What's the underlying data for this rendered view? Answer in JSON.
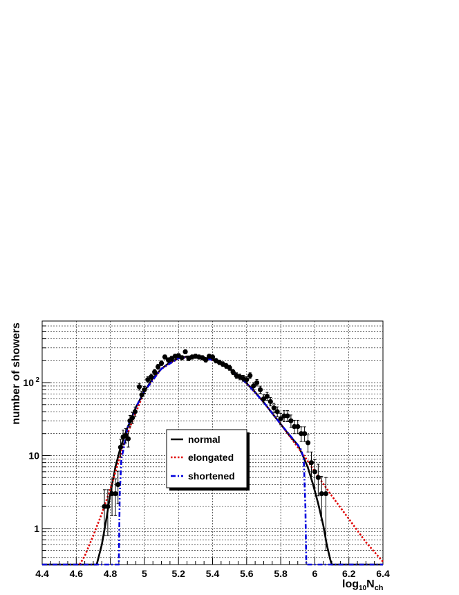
{
  "chart_data": {
    "type": "scatter",
    "xlabel": "log10 Nch",
    "xlabel_parts": {
      "base": "log",
      "base_sub": "10",
      "var": "N",
      "var_sub": "ch"
    },
    "ylabel": "number of showers",
    "xlim": [
      4.4,
      6.4
    ],
    "ylim": [
      0.32,
      700
    ],
    "yscale": "log",
    "grid": true,
    "x_tick_labels": [
      "4.4",
      "4.6",
      "4.8",
      "5",
      "5.2",
      "5.4",
      "5.6",
      "5.8",
      "6",
      "6.2",
      "6.4"
    ],
    "y_tick_labels": [
      {
        "value": 1,
        "label": "1"
      },
      {
        "value": 10,
        "label": "10"
      },
      {
        "value": 100,
        "label": "10",
        "sup": "2"
      }
    ],
    "legend": {
      "placement": "center",
      "entries": [
        {
          "name": "normal",
          "color": "#000000",
          "style": "solid"
        },
        {
          "name": "elongated",
          "color": "#e00000",
          "style": "dotted"
        },
        {
          "name": "shortened",
          "color": "#0000dd",
          "style": "dashdot"
        }
      ]
    },
    "series": [
      {
        "name": "data",
        "kind": "points",
        "color": "#000000",
        "x": [
          4.765,
          4.785,
          4.81,
          4.83,
          4.845,
          4.86,
          4.875,
          4.89,
          4.905,
          4.915,
          4.93,
          4.945,
          4.97,
          4.985,
          5.0,
          5.02,
          5.04,
          5.06,
          5.08,
          5.1,
          5.12,
          5.14,
          5.16,
          5.18,
          5.2,
          5.22,
          5.24,
          5.26,
          5.28,
          5.3,
          5.32,
          5.34,
          5.36,
          5.38,
          5.4,
          5.42,
          5.44,
          5.46,
          5.48,
          5.5,
          5.52,
          5.54,
          5.56,
          5.58,
          5.6,
          5.62,
          5.64,
          5.66,
          5.68,
          5.7,
          5.72,
          5.74,
          5.76,
          5.78,
          5.8,
          5.82,
          5.84,
          5.86,
          5.88,
          5.9,
          5.92,
          5.94,
          5.96,
          5.98,
          6.0,
          6.02,
          6.04,
          6.065
        ],
        "y": [
          2,
          2,
          3,
          3,
          4,
          13,
          18,
          19,
          17,
          30,
          33,
          40,
          88,
          68,
          80,
          110,
          120,
          140,
          165,
          185,
          225,
          205,
          215,
          230,
          235,
          220,
          265,
          215,
          225,
          230,
          225,
          220,
          205,
          230,
          225,
          200,
          190,
          180,
          170,
          160,
          140,
          125,
          120,
          115,
          110,
          125,
          90,
          100,
          80,
          60,
          65,
          55,
          45,
          40,
          32,
          35,
          35,
          30,
          25,
          25,
          20,
          20,
          15,
          8,
          6,
          5,
          3,
          3
        ],
        "err_lo": [
          1.2,
          1.2,
          1.5,
          1.5,
          1.8,
          3.4,
          4.0,
          4.1,
          3.9,
          5.2,
          5.5,
          6.0,
          9.0,
          8.0,
          8.5,
          10.0,
          10.5,
          11.5,
          12.5,
          13.5,
          15.0,
          14.0,
          14.5,
          15.0,
          15.0,
          14.5,
          16.0,
          14.5,
          15.0,
          15.0,
          15.0,
          14.5,
          14.0,
          15.0,
          15.0,
          14.0,
          13.5,
          13.0,
          13.0,
          12.5,
          11.5,
          11.0,
          10.5,
          10.5,
          10.5,
          11.0,
          9.5,
          10.0,
          9.0,
          7.5,
          8.0,
          7.0,
          6.5,
          6.0,
          5.5,
          5.8,
          5.8,
          5.5,
          5.0,
          5.0,
          4.4,
          4.4,
          3.8,
          2.8,
          2.4,
          2.2,
          1.7,
          2.5
        ],
        "err_hi": [
          1.4,
          1.4,
          1.8,
          1.8,
          2.1,
          3.7,
          4.3,
          4.4,
          4.2,
          5.5,
          5.8,
          6.3,
          9.4,
          8.3,
          8.9,
          10.5,
          11.0,
          12.0,
          13.0,
          14.0,
          15.5,
          14.5,
          15.0,
          15.5,
          15.5,
          15.0,
          16.5,
          15.0,
          15.5,
          15.5,
          15.5,
          15.0,
          14.5,
          15.5,
          15.5,
          14.5,
          14.0,
          13.5,
          13.5,
          13.0,
          12.0,
          11.5,
          11.0,
          11.0,
          11.0,
          11.5,
          10.0,
          10.5,
          9.5,
          8.0,
          8.5,
          7.5,
          7.0,
          6.5,
          6.0,
          6.3,
          6.3,
          6.0,
          5.5,
          5.5,
          4.8,
          4.8,
          4.2,
          3.2,
          2.8,
          2.6,
          2.2,
          2.0
        ]
      },
      {
        "name": "normal",
        "kind": "line",
        "color": "#000000",
        "style": "solid",
        "x": [
          4.4,
          4.72,
          4.75,
          4.78,
          4.8,
          4.83,
          4.86,
          4.9,
          4.95,
          5.0,
          5.05,
          5.1,
          5.15,
          5.2,
          5.25,
          5.3,
          5.35,
          5.4,
          5.45,
          5.5,
          5.55,
          5.6,
          5.65,
          5.7,
          5.75,
          5.8,
          5.85,
          5.9,
          5.93,
          5.96,
          5.99,
          6.02,
          6.05,
          6.07,
          6.09,
          6.1,
          6.4
        ],
        "y": [
          0.32,
          0.32,
          0.6,
          1.5,
          3.0,
          7.0,
          13.0,
          24.0,
          46.0,
          76.0,
          115.0,
          155.0,
          190.0,
          215.0,
          228.0,
          230.0,
          222.0,
          205.0,
          182.0,
          155.0,
          126.0,
          98.0,
          74.0,
          54.0,
          38.0,
          27.0,
          19.0,
          14.0,
          10.0,
          6.8,
          4.0,
          2.2,
          1.1,
          0.6,
          0.38,
          0.32,
          0.32
        ]
      },
      {
        "name": "elongated",
        "kind": "line",
        "color": "#e00000",
        "style": "dotted",
        "x": [
          4.62,
          4.65,
          4.7,
          4.75,
          4.8,
          4.85,
          4.9,
          5.0,
          5.1,
          5.2,
          5.3,
          5.4,
          5.5,
          5.6,
          5.7,
          5.8,
          5.9,
          5.95,
          6.0,
          6.1,
          6.2,
          6.3,
          6.4
        ],
        "y": [
          0.32,
          0.42,
          0.8,
          1.6,
          3.5,
          8.5,
          20.0,
          76.0,
          155.0,
          215.0,
          230.0,
          205.0,
          155.0,
          98.0,
          54.0,
          27.0,
          13.0,
          9.0,
          6.0,
          2.8,
          1.35,
          0.65,
          0.35
        ]
      },
      {
        "name": "shortened",
        "kind": "line",
        "color": "#0000dd",
        "style": "dashdot",
        "x": [
          4.4,
          4.85,
          4.855,
          4.865,
          4.88,
          4.9,
          4.95,
          5.0,
          5.1,
          5.2,
          5.3,
          5.4,
          5.5,
          5.6,
          5.7,
          5.8,
          5.9,
          5.92,
          5.935,
          5.945,
          5.95,
          6.4
        ],
        "y": [
          0.32,
          0.32,
          3.0,
          9.0,
          13.0,
          24.0,
          46.0,
          76.0,
          155.0,
          215.0,
          230.0,
          205.0,
          155.0,
          98.0,
          54.0,
          27.0,
          14.0,
          12.0,
          9.0,
          2.0,
          0.32,
          0.32
        ]
      }
    ]
  }
}
